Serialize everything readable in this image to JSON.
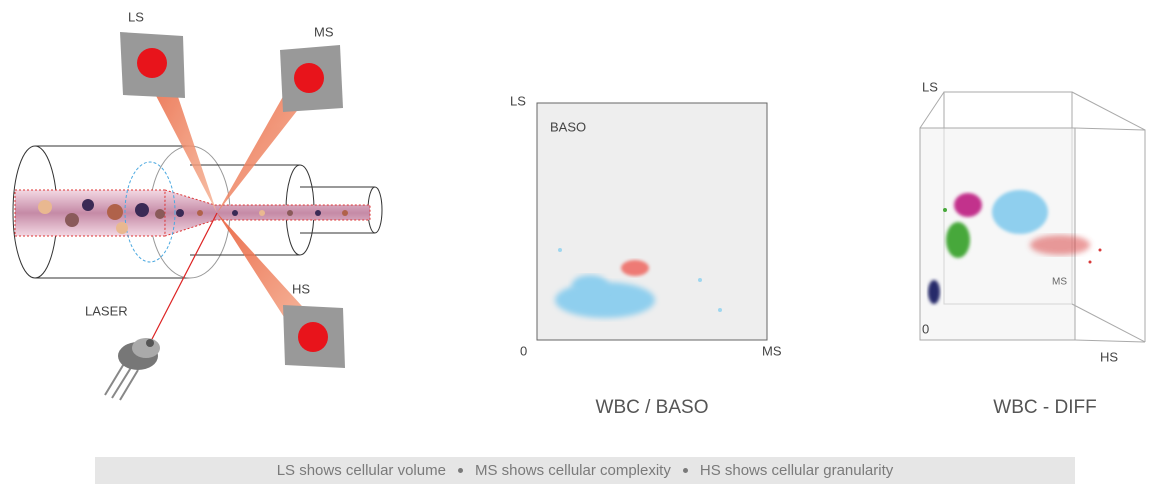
{
  "optics": {
    "detectors": [
      "LS",
      "MS",
      "HS"
    ],
    "laser": "LASER"
  },
  "baso_plot": {
    "y_label": "LS",
    "x_label": "MS",
    "origin": 0,
    "region": "BASO",
    "caption": "WBC / BASO"
  },
  "diff_plot": {
    "y_label": "LS",
    "z_label": "MS",
    "x_label": "HS",
    "origin": 0,
    "caption": "WBC - DIFF"
  },
  "footer": {
    "items": [
      "LS shows cellular volume",
      "MS shows cellular complexity",
      "HS shows cellular granularity"
    ]
  }
}
